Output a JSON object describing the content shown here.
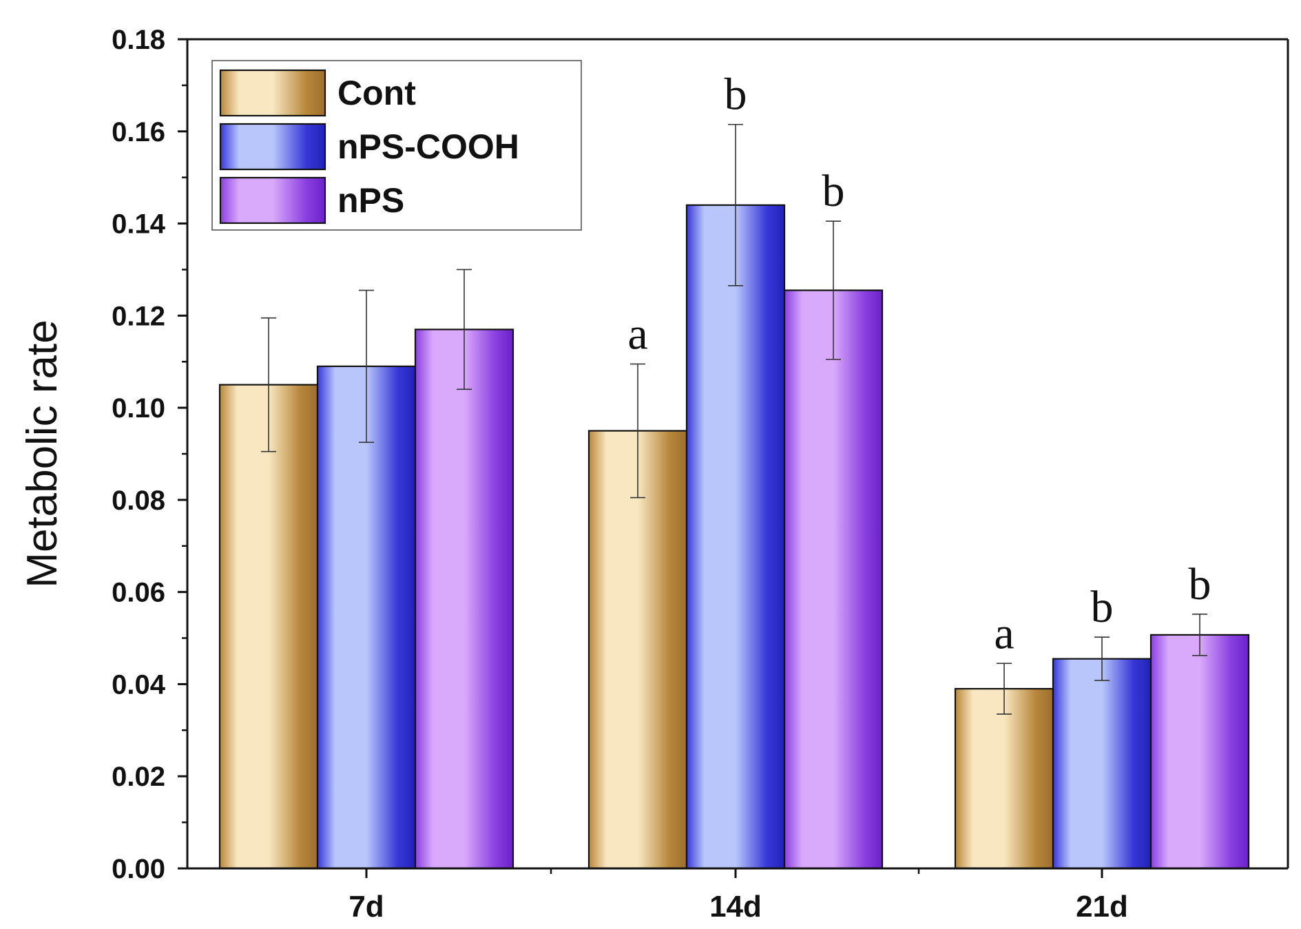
{
  "chart_data": {
    "type": "bar",
    "title": "",
    "xlabel": "",
    "ylabel": "Metabolic rate",
    "ylim": [
      0,
      0.18
    ],
    "y_ticks": [
      "0.00",
      "0.02",
      "0.04",
      "0.06",
      "0.08",
      "0.10",
      "0.12",
      "0.14",
      "0.16",
      "0.18"
    ],
    "categories": [
      "7d",
      "14d",
      "21d"
    ],
    "legend_position": "top-left",
    "series": [
      {
        "name": "Cont",
        "values": [
          0.105,
          0.095,
          0.039
        ],
        "errors": [
          0.0145,
          0.0145,
          0.0055
        ],
        "significance": [
          "",
          "a",
          "a"
        ],
        "colors": {
          "edge": "#b8873c",
          "mid": "#f8e7c0",
          "dark": "#9c6f2e"
        }
      },
      {
        "name": "nPS-COOH",
        "values": [
          0.109,
          0.144,
          0.0455
        ],
        "errors": [
          0.0165,
          0.0175,
          0.0047
        ],
        "significance": [
          "",
          "b",
          "b"
        ],
        "colors": {
          "edge": "#3838d8",
          "mid": "#b8c6fb",
          "dark": "#2222b8"
        }
      },
      {
        "name": "nPS",
        "values": [
          0.117,
          0.1255,
          0.0507
        ],
        "errors": [
          0.013,
          0.015,
          0.0045
        ],
        "significance": [
          "",
          "b",
          "b"
        ],
        "colors": {
          "edge": "#8a3fe0",
          "mid": "#d9a9fb",
          "dark": "#6a22c8"
        }
      }
    ]
  }
}
